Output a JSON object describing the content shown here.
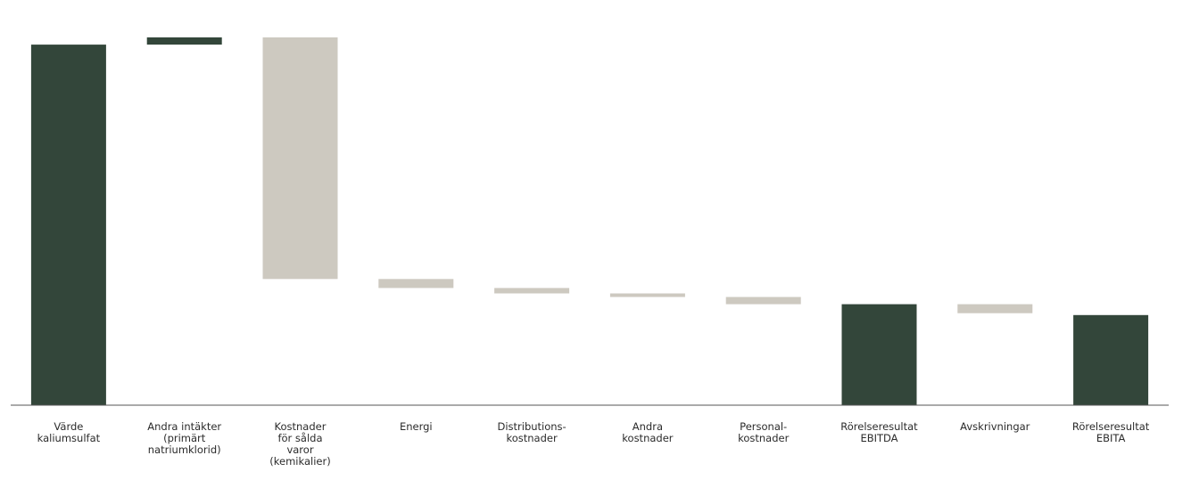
{
  "chart_data": {
    "type": "waterfall",
    "title": "",
    "xlabel": "",
    "ylabel": "",
    "grid": false,
    "legend": "none",
    "colors": {
      "total": "#33463a",
      "positive": "#33463a",
      "negative": "#cdc9c0",
      "axis": "#555555"
    },
    "categories": [
      [
        "Värde",
        "kaliumsulfat"
      ],
      [
        "Andra intäkter",
        "(primärt",
        "natriumklorid)"
      ],
      [
        "Kostnader",
        "för sålda",
        "varor",
        "(kemikalier)"
      ],
      [
        "Energi"
      ],
      [
        "Distributions-",
        "kostnader"
      ],
      [
        "Andra",
        "kostnader"
      ],
      [
        "Personal-",
        "kostnader"
      ],
      [
        "Rörelseresultat",
        "EBITDA"
      ],
      [
        "Avskrivningar"
      ],
      [
        "Rörelseresultat",
        "EBITA"
      ]
    ],
    "values": [
      100,
      2,
      -67,
      -2.5,
      -1.5,
      -1,
      -2,
      28,
      -2.5,
      25
    ],
    "kinds": [
      "total",
      "delta",
      "delta",
      "delta",
      "delta",
      "delta",
      "delta",
      "total",
      "delta",
      "total"
    ],
    "ylim": [
      0,
      102
    ]
  }
}
